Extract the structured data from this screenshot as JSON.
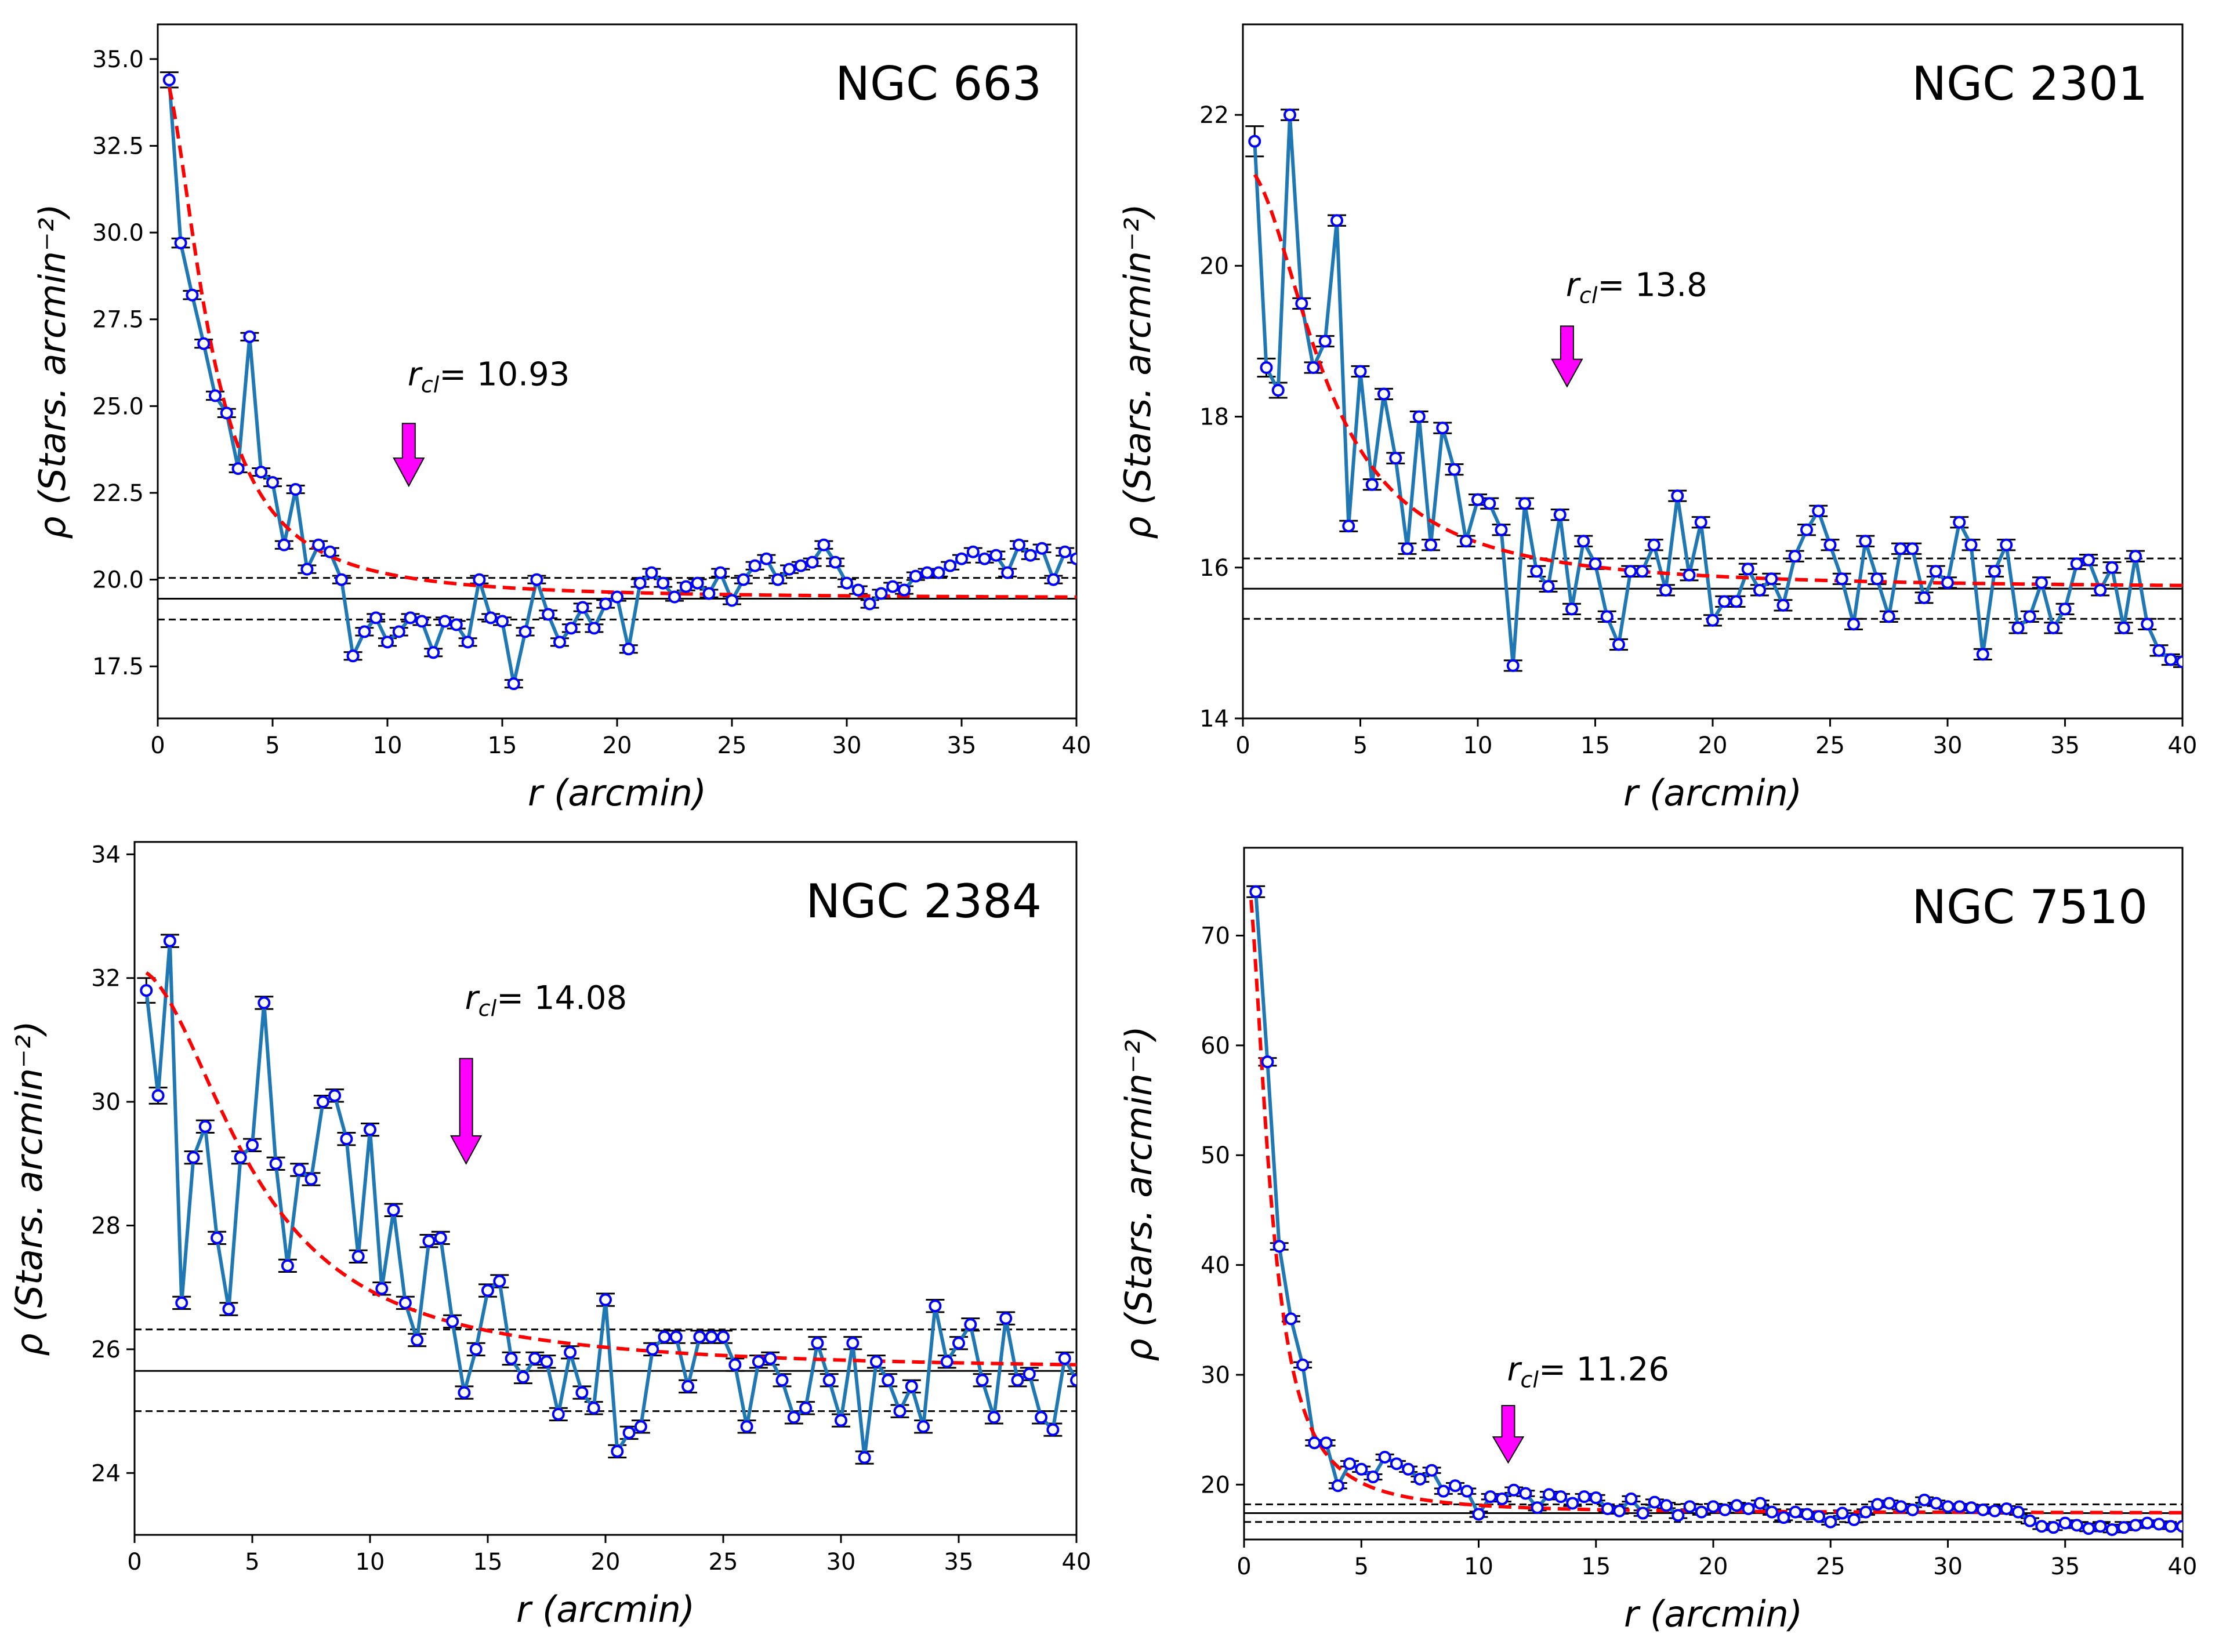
{
  "colors": {
    "series": "#1f77b4",
    "marker_edge": "#0000ff",
    "marker_face": "#ffffff",
    "fit": "#ff0000",
    "arrow": "#ff00ff",
    "errorbar": "#000000"
  },
  "chart_data": [
    {
      "type": "line",
      "title": "NGC 663",
      "xlabel": "r   (arcmin)",
      "ylabel": "ρ  (Stars. arcmin⁻²)",
      "xlim": [
        0,
        40
      ],
      "ylim": [
        16.0,
        36.0
      ],
      "xticks": [
        0,
        5,
        10,
        15,
        20,
        25,
        30,
        35,
        40
      ],
      "yticks": [
        17.5,
        20.0,
        22.5,
        25.0,
        27.5,
        30.0,
        32.5,
        35.0
      ],
      "ytick_labels": [
        "17.5",
        "20.0",
        "22.5",
        "25.0",
        "27.5",
        "30.0",
        "32.5",
        "35.0"
      ],
      "annotation": {
        "prefix": "r",
        "subscript": "cl",
        "text": "= 10.93",
        "value": 10.93,
        "label_y": 25.6,
        "arrow_top_y": 24.5,
        "arrow_tip_y": 22.7
      },
      "background": {
        "level": 19.45,
        "upper": 20.05,
        "lower": 18.85
      },
      "fit": {
        "model": "King",
        "f0": 15.5,
        "rc": 2.2,
        "bg": 19.45,
        "r_start": 0.5
      },
      "x": [
        0.5,
        1.0,
        1.5,
        2.0,
        2.5,
        3.0,
        3.5,
        4.0,
        4.5,
        5.0,
        5.5,
        6.0,
        6.5,
        7.0,
        7.5,
        8.0,
        8.5,
        9.0,
        9.5,
        10.0,
        10.5,
        11.0,
        11.5,
        12.0,
        12.5,
        13.0,
        13.5,
        14.0,
        14.5,
        15.0,
        15.5,
        16.0,
        16.5,
        17.0,
        17.5,
        18.0,
        18.5,
        19.0,
        19.5,
        20.0,
        20.5,
        21.0,
        21.5,
        22.0,
        22.5,
        23.0,
        23.5,
        24.0,
        24.5,
        25.0,
        25.5,
        26.0,
        26.5,
        27.0,
        27.5,
        28.0,
        28.5,
        29.0,
        29.5,
        30.0,
        30.5,
        31.0,
        31.5,
        32.0,
        32.5,
        33.0,
        33.5,
        34.0,
        34.5,
        35.0,
        35.5,
        36.0,
        36.5,
        37.0,
        37.5,
        38.0,
        38.5,
        39.0,
        39.5,
        40.0
      ],
      "y": [
        34.4,
        29.7,
        28.2,
        26.8,
        25.3,
        24.8,
        23.2,
        27.0,
        23.1,
        22.8,
        21.0,
        22.6,
        20.3,
        21.0,
        20.8,
        20.0,
        17.8,
        18.5,
        18.9,
        18.2,
        18.5,
        18.9,
        18.8,
        17.9,
        18.8,
        18.7,
        18.2,
        20.0,
        18.9,
        18.8,
        17.0,
        18.5,
        20.0,
        19.0,
        18.2,
        18.6,
        19.2,
        18.6,
        19.3,
        19.5,
        18.0,
        19.9,
        20.2,
        19.9,
        19.5,
        19.8,
        19.9,
        19.6,
        20.2,
        19.4,
        20.0,
        20.4,
        20.6,
        20.0,
        20.3,
        20.4,
        20.5,
        21.0,
        20.5,
        19.9,
        19.7,
        19.3,
        19.6,
        19.8,
        19.7,
        20.1,
        20.2,
        20.2,
        20.4,
        20.6,
        20.8,
        20.6,
        20.7,
        20.2,
        21.0,
        20.7,
        20.9,
        20.0,
        20.8,
        20.6
      ],
      "yerr": [
        0.22,
        0.13,
        0.12,
        0.12,
        0.12,
        0.12,
        0.11,
        0.11,
        0.11,
        0.11,
        0.11,
        0.11,
        0.11,
        0.11,
        0.11,
        0.11,
        0.11,
        0.11,
        0.11,
        0.11,
        0.11,
        0.11,
        0.11,
        0.11,
        0.11,
        0.11,
        0.11,
        0.11,
        0.11,
        0.11,
        0.11,
        0.11,
        0.11,
        0.11,
        0.11,
        0.11,
        0.11,
        0.11,
        0.11,
        0.11,
        0.11,
        0.11,
        0.11,
        0.11,
        0.11,
        0.11,
        0.11,
        0.11,
        0.11,
        0.11,
        0.11,
        0.11,
        0.11,
        0.11,
        0.11,
        0.11,
        0.11,
        0.11,
        0.11,
        0.11,
        0.11,
        0.11,
        0.11,
        0.11,
        0.11,
        0.11,
        0.11,
        0.11,
        0.11,
        0.11,
        0.11,
        0.11,
        0.11,
        0.11,
        0.11,
        0.11,
        0.11,
        0.11,
        0.11,
        0.11
      ]
    },
    {
      "type": "line",
      "title": "NGC 2301",
      "xlabel": "r   (arcmin)",
      "ylabel": "ρ  (Stars. arcmin⁻²)",
      "xlim": [
        0,
        40
      ],
      "ylim": [
        14.0,
        23.2
      ],
      "xticks": [
        0,
        5,
        10,
        15,
        20,
        25,
        30,
        35,
        40
      ],
      "yticks": [
        14,
        16,
        18,
        20,
        22
      ],
      "ytick_labels": [
        "14",
        "16",
        "18",
        "20",
        "22"
      ],
      "annotation": {
        "prefix": "r",
        "subscript": "cl",
        "text": "= 13.8",
        "value": 13.8,
        "label_y": 19.6,
        "arrow_top_y": 19.2,
        "arrow_tip_y": 18.4
      },
      "background": {
        "level": 15.72,
        "upper": 16.12,
        "lower": 15.32
      },
      "fit": {
        "model": "King",
        "f0": 5.6,
        "rc": 3.5,
        "bg": 15.72,
        "r_start": 0.5
      },
      "x": [
        0.5,
        1.0,
        1.5,
        2.0,
        2.5,
        3.0,
        3.5,
        4.0,
        4.5,
        5.0,
        5.5,
        6.0,
        6.5,
        7.0,
        7.5,
        8.0,
        8.5,
        9.0,
        9.5,
        10.0,
        10.5,
        11.0,
        11.5,
        12.0,
        12.5,
        13.0,
        13.5,
        14.0,
        14.5,
        15.0,
        15.5,
        16.0,
        16.5,
        17.0,
        17.5,
        18.0,
        18.5,
        19.0,
        19.5,
        20.0,
        20.5,
        21.0,
        21.5,
        22.0,
        22.5,
        23.0,
        23.5,
        24.0,
        24.5,
        25.0,
        25.5,
        26.0,
        26.5,
        27.0,
        27.5,
        28.0,
        28.5,
        29.0,
        29.5,
        30.0,
        30.5,
        31.0,
        31.5,
        32.0,
        32.5,
        33.0,
        33.5,
        34.0,
        34.5,
        35.0,
        35.5,
        36.0,
        36.5,
        37.0,
        37.5,
        38.0,
        38.5,
        39.0,
        39.5,
        40.0
      ],
      "y": [
        21.65,
        18.65,
        18.35,
        22.0,
        19.5,
        18.65,
        19.0,
        20.6,
        16.55,
        18.6,
        17.1,
        18.3,
        17.45,
        16.25,
        18.0,
        16.3,
        17.85,
        17.3,
        16.35,
        16.9,
        16.85,
        16.5,
        14.7,
        16.85,
        15.95,
        15.75,
        16.7,
        15.45,
        16.35,
        16.05,
        15.35,
        14.98,
        15.95,
        15.95,
        16.3,
        15.7,
        16.95,
        15.9,
        16.6,
        15.3,
        15.55,
        15.55,
        15.98,
        15.7,
        15.85,
        15.5,
        16.15,
        16.5,
        16.75,
        16.3,
        15.85,
        15.25,
        16.35,
        15.85,
        15.35,
        16.25,
        16.25,
        15.6,
        15.95,
        15.8,
        16.6,
        16.3,
        14.85,
        15.95,
        16.3,
        15.2,
        15.35,
        15.8,
        15.2,
        15.45,
        16.05,
        16.1,
        15.7,
        16.0,
        15.2,
        16.15,
        15.25,
        14.9,
        14.78,
        14.75
      ],
      "yerr": [
        0.2,
        0.12,
        0.1,
        0.07,
        0.07,
        0.07,
        0.07,
        0.07,
        0.07,
        0.07,
        0.07,
        0.07,
        0.07,
        0.07,
        0.07,
        0.07,
        0.07,
        0.07,
        0.07,
        0.07,
        0.07,
        0.07,
        0.07,
        0.07,
        0.07,
        0.07,
        0.07,
        0.07,
        0.07,
        0.07,
        0.07,
        0.07,
        0.07,
        0.07,
        0.07,
        0.07,
        0.07,
        0.07,
        0.07,
        0.07,
        0.07,
        0.07,
        0.07,
        0.07,
        0.07,
        0.07,
        0.07,
        0.07,
        0.07,
        0.07,
        0.07,
        0.07,
        0.07,
        0.07,
        0.07,
        0.07,
        0.07,
        0.07,
        0.07,
        0.07,
        0.07,
        0.07,
        0.07,
        0.07,
        0.07,
        0.07,
        0.07,
        0.07,
        0.07,
        0.07,
        0.07,
        0.07,
        0.07,
        0.07,
        0.07,
        0.07,
        0.07,
        0.07,
        0.07,
        0.07
      ]
    },
    {
      "type": "line",
      "title": "NGC 2384",
      "xlabel": "r   (arcmin)",
      "ylabel": "ρ  (Stars. arcmin⁻²)",
      "xlim": [
        0,
        40
      ],
      "ylim": [
        23.0,
        34.2
      ],
      "xticks": [
        0,
        5,
        10,
        15,
        20,
        25,
        30,
        35,
        40
      ],
      "yticks": [
        24,
        26,
        28,
        30,
        32,
        34
      ],
      "ytick_labels": [
        "24",
        "26",
        "28",
        "30",
        "32",
        "34"
      ],
      "annotation": {
        "prefix": "r",
        "subscript": "cl",
        "text": "= 14.08",
        "value": 14.08,
        "label_y": 31.5,
        "arrow_top_y": 30.7,
        "arrow_tip_y": 29.0
      },
      "background": {
        "level": 25.65,
        "upper": 26.32,
        "lower": 25.0
      },
      "fit": {
        "model": "King",
        "f0": 6.5,
        "rc": 5.0,
        "bg": 25.65,
        "r_start": 0.5
      },
      "x": [
        0.5,
        1.0,
        1.5,
        2.0,
        2.5,
        3.0,
        3.5,
        4.0,
        4.5,
        5.0,
        5.5,
        6.0,
        6.5,
        7.0,
        7.5,
        8.0,
        8.5,
        9.0,
        9.5,
        10.0,
        10.5,
        11.0,
        11.5,
        12.0,
        12.5,
        13.0,
        13.5,
        14.0,
        14.5,
        15.0,
        15.5,
        16.0,
        16.5,
        17.0,
        17.5,
        18.0,
        18.5,
        19.0,
        19.5,
        20.0,
        20.5,
        21.0,
        21.5,
        22.0,
        22.5,
        23.0,
        23.5,
        24.0,
        24.5,
        25.0,
        25.5,
        26.0,
        26.5,
        27.0,
        27.5,
        28.0,
        28.5,
        29.0,
        29.5,
        30.0,
        30.5,
        31.0,
        31.5,
        32.0,
        32.5,
        33.0,
        33.5,
        34.0,
        34.5,
        35.0,
        35.5,
        36.0,
        36.5,
        37.0,
        37.5,
        38.0,
        38.5,
        39.0,
        39.5,
        40.0
      ],
      "y": [
        31.8,
        30.1,
        32.6,
        26.75,
        29.1,
        29.6,
        27.8,
        26.65,
        29.1,
        29.3,
        31.6,
        29.0,
        27.35,
        28.9,
        28.75,
        30.0,
        30.1,
        29.4,
        27.5,
        29.55,
        26.98,
        28.25,
        26.75,
        26.15,
        27.75,
        27.8,
        26.45,
        25.3,
        26.0,
        26.95,
        27.1,
        25.85,
        25.55,
        25.85,
        25.8,
        24.95,
        25.95,
        25.3,
        25.05,
        26.8,
        24.35,
        24.65,
        24.75,
        26.0,
        26.2,
        26.2,
        25.4,
        26.2,
        26.2,
        26.2,
        25.75,
        24.75,
        25.8,
        25.85,
        25.5,
        24.9,
        25.05,
        26.1,
        25.5,
        24.85,
        26.1,
        24.25,
        25.8,
        25.5,
        25.0,
        25.4,
        24.75,
        26.7,
        25.8,
        26.1,
        26.4,
        25.5,
        24.9,
        26.5,
        25.5,
        25.6,
        24.9,
        24.7,
        25.85,
        25.5
      ],
      "yerr": [
        0.2,
        0.13,
        0.1,
        0.1,
        0.1,
        0.1,
        0.1,
        0.1,
        0.1,
        0.1,
        0.1,
        0.1,
        0.1,
        0.1,
        0.1,
        0.1,
        0.1,
        0.1,
        0.1,
        0.1,
        0.1,
        0.1,
        0.1,
        0.1,
        0.1,
        0.1,
        0.1,
        0.1,
        0.1,
        0.1,
        0.1,
        0.1,
        0.1,
        0.1,
        0.1,
        0.1,
        0.1,
        0.1,
        0.1,
        0.1,
        0.1,
        0.1,
        0.1,
        0.1,
        0.1,
        0.1,
        0.1,
        0.1,
        0.1,
        0.1,
        0.1,
        0.1,
        0.1,
        0.1,
        0.1,
        0.1,
        0.1,
        0.1,
        0.1,
        0.1,
        0.1,
        0.1,
        0.1,
        0.1,
        0.1,
        0.1,
        0.1,
        0.1,
        0.1,
        0.1,
        0.1,
        0.1,
        0.1,
        0.1,
        0.1,
        0.1,
        0.1,
        0.1,
        0.1,
        0.1
      ]
    },
    {
      "type": "line",
      "title": "NGC 7510",
      "xlabel": "r   (arcmin)",
      "ylabel": "ρ  (Stars. arcmin⁻²)",
      "xlim": [
        0,
        40
      ],
      "ylim": [
        15.0,
        78.0
      ],
      "xticks": [
        0,
        5,
        10,
        15,
        20,
        25,
        30,
        35,
        40
      ],
      "yticks": [
        20,
        30,
        40,
        50,
        60,
        70
      ],
      "ytick_labels": [
        "20",
        "30",
        "40",
        "50",
        "60",
        "70"
      ],
      "annotation": {
        "prefix": "r",
        "subscript": "cl",
        "text": "= 11.26",
        "value": 11.26,
        "label_y": 29.5,
        "arrow_top_y": 27.2,
        "arrow_tip_y": 22.0
      },
      "background": {
        "level": 17.4,
        "upper": 18.2,
        "lower": 16.6
      },
      "fit": {
        "model": "King",
        "f0": 60.0,
        "rc": 1.1,
        "bg": 17.4,
        "r_start": 0.3
      },
      "x": [
        0.5,
        1.0,
        1.5,
        2.0,
        2.5,
        3.0,
        3.5,
        4.0,
        4.5,
        5.0,
        5.5,
        6.0,
        6.5,
        7.0,
        7.5,
        8.0,
        8.5,
        9.0,
        9.5,
        10.0,
        10.5,
        11.0,
        11.5,
        12.0,
        12.5,
        13.0,
        13.5,
        14.0,
        14.5,
        15.0,
        15.5,
        16.0,
        16.5,
        17.0,
        17.5,
        18.0,
        18.5,
        19.0,
        19.5,
        20.0,
        20.5,
        21.0,
        21.5,
        22.0,
        22.5,
        23.0,
        23.5,
        24.0,
        24.5,
        25.0,
        25.5,
        26.0,
        26.5,
        27.0,
        27.5,
        28.0,
        28.5,
        29.0,
        29.5,
        30.0,
        30.5,
        31.0,
        31.5,
        32.0,
        32.5,
        33.0,
        33.5,
        34.0,
        34.5,
        35.0,
        35.5,
        36.0,
        36.5,
        37.0,
        37.5,
        38.0,
        38.5,
        39.0,
        39.5,
        40.0
      ],
      "y": [
        74.0,
        58.5,
        41.7,
        35.1,
        30.9,
        23.8,
        23.8,
        19.9,
        21.9,
        21.4,
        20.7,
        22.5,
        21.9,
        21.4,
        20.5,
        21.3,
        19.4,
        19.9,
        19.4,
        17.3,
        18.9,
        18.7,
        19.5,
        19.2,
        17.9,
        19.1,
        18.9,
        18.3,
        18.9,
        18.8,
        17.8,
        17.6,
        18.7,
        17.4,
        18.4,
        18.1,
        17.2,
        18.0,
        17.5,
        18.0,
        17.7,
        18.1,
        17.8,
        18.3,
        17.5,
        17.0,
        17.5,
        17.3,
        17.1,
        16.6,
        17.4,
        16.8,
        17.5,
        18.2,
        18.3,
        18.0,
        17.7,
        18.6,
        18.3,
        18.0,
        18.0,
        17.9,
        17.7,
        17.6,
        17.8,
        17.5,
        16.7,
        16.2,
        16.1,
        16.5,
        16.3,
        16.0,
        16.2,
        15.9,
        16.1,
        16.3,
        16.5,
        16.4,
        16.2,
        16.2
      ],
      "yerr": [
        0.5,
        0.35,
        0.3,
        0.25,
        0.25,
        0.25,
        0.25,
        0.25,
        0.25,
        0.25,
        0.25,
        0.25,
        0.25,
        0.25,
        0.25,
        0.25,
        0.25,
        0.25,
        0.25,
        0.25,
        0.25,
        0.25,
        0.25,
        0.25,
        0.25,
        0.25,
        0.25,
        0.25,
        0.25,
        0.25,
        0.25,
        0.25,
        0.25,
        0.25,
        0.25,
        0.25,
        0.25,
        0.25,
        0.25,
        0.25,
        0.25,
        0.25,
        0.25,
        0.25,
        0.25,
        0.25,
        0.25,
        0.25,
        0.25,
        0.25,
        0.25,
        0.25,
        0.25,
        0.25,
        0.25,
        0.25,
        0.25,
        0.25,
        0.25,
        0.25,
        0.25,
        0.25,
        0.25,
        0.25,
        0.25,
        0.25,
        0.25,
        0.25,
        0.25,
        0.25,
        0.25,
        0.25,
        0.25,
        0.25,
        0.25,
        0.25,
        0.25,
        0.25,
        0.25,
        0.25
      ]
    }
  ]
}
